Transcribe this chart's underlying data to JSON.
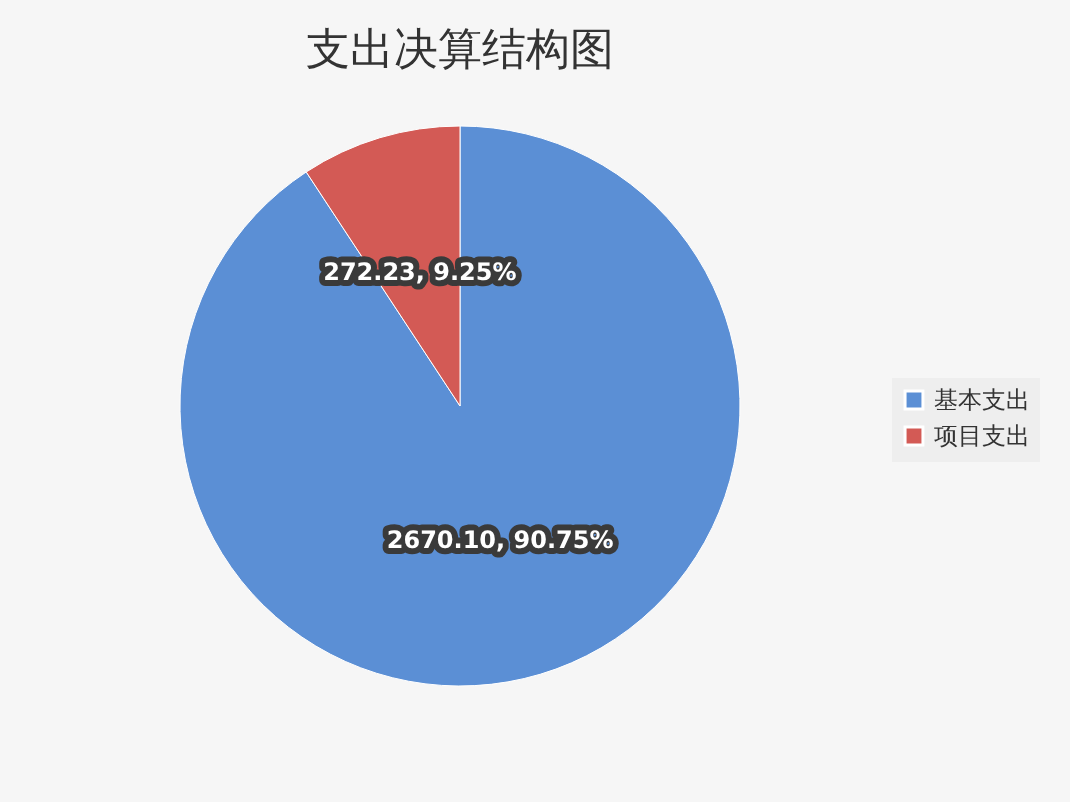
{
  "chart_data": {
    "type": "pie",
    "title": "支出决算结构图",
    "categories": [
      "基本支出",
      "项目支出"
    ],
    "values": [
      2670.1,
      272.23
    ],
    "colors": [
      "#5b8fd5",
      "#d35a55"
    ],
    "value_labels": [
      "2670.10, 90.75%",
      "272.23, 9.25%"
    ],
    "legend": "right"
  }
}
